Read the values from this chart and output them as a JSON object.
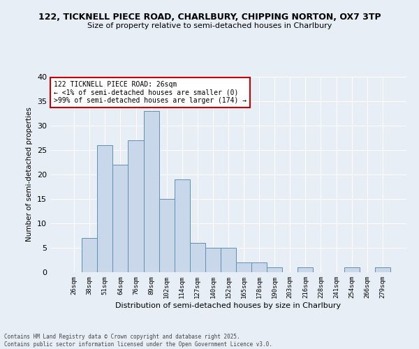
{
  "title_line1": "122, TICKNELL PIECE ROAD, CHARLBURY, CHIPPING NORTON, OX7 3TP",
  "title_line2": "Size of property relative to semi-detached houses in Charlbury",
  "xlabel": "Distribution of semi-detached houses by size in Charlbury",
  "ylabel": "Number of semi-detached properties",
  "categories": [
    "26sqm",
    "38sqm",
    "51sqm",
    "64sqm",
    "76sqm",
    "89sqm",
    "102sqm",
    "114sqm",
    "127sqm",
    "140sqm",
    "152sqm",
    "165sqm",
    "178sqm",
    "190sqm",
    "203sqm",
    "216sqm",
    "228sqm",
    "241sqm",
    "254sqm",
    "266sqm",
    "279sqm"
  ],
  "values": [
    0,
    7,
    26,
    22,
    27,
    33,
    15,
    19,
    6,
    5,
    5,
    2,
    2,
    1,
    0,
    1,
    0,
    0,
    1,
    0,
    1
  ],
  "bar_color": "#c8d8ea",
  "bar_edge_color": "#6090b0",
  "ylim": [
    0,
    40
  ],
  "yticks": [
    0,
    5,
    10,
    15,
    20,
    25,
    30,
    35,
    40
  ],
  "annotation_text": "122 TICKNELL PIECE ROAD: 26sqm\n← <1% of semi-detached houses are smaller (0)\n>99% of semi-detached houses are larger (174) →",
  "annotation_box_color": "#ffffff",
  "annotation_box_edge": "#cc0000",
  "footer": "Contains HM Land Registry data © Crown copyright and database right 2025.\nContains public sector information licensed under the Open Government Licence v3.0.",
  "bg_color": "#e8eef6",
  "plot_bg_color": "#e8eef6",
  "grid_color": "#ffffff"
}
